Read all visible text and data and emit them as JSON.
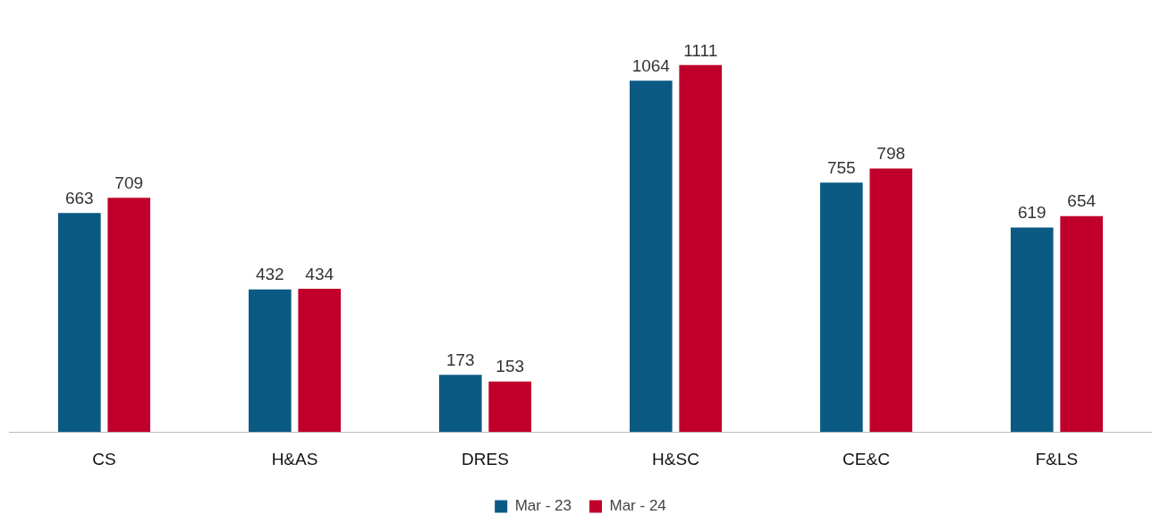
{
  "chart_data": {
    "type": "bar",
    "categories": [
      "CS",
      "H&AS",
      "DRES",
      "H&SC",
      "CE&C",
      "F&LS"
    ],
    "series": [
      {
        "name": "Mar - 23",
        "color": "#0b5a84",
        "values": [
          663,
          432,
          173,
          1064,
          755,
          619
        ]
      },
      {
        "name": "Mar - 24",
        "color": "#c0002a",
        "values": [
          709,
          434,
          153,
          1111,
          798,
          654
        ]
      }
    ],
    "data_labels": true,
    "legend": "bottom",
    "tick_labels": "x",
    "grid": false
  }
}
